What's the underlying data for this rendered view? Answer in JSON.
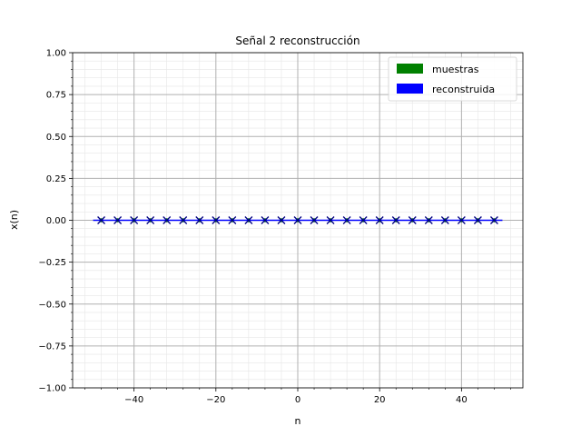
{
  "chart_data": {
    "type": "scatter",
    "title": "Señal 2 reconstrucción",
    "xlabel": "n",
    "ylabel": "x(n)",
    "xlim": [
      -55,
      55
    ],
    "ylim": [
      -1.0,
      1.0
    ],
    "x_major_ticks": [
      -40,
      -20,
      0,
      20,
      40
    ],
    "x_tick_labels": [
      "−40",
      "−20",
      "0",
      "20",
      "40"
    ],
    "y_major_ticks": [
      -1.0,
      -0.75,
      -0.5,
      -0.25,
      0.0,
      0.25,
      0.5,
      0.75,
      1.0
    ],
    "y_tick_labels": [
      "−1.00",
      "−0.75",
      "−0.50",
      "−0.25",
      "0.00",
      "0.25",
      "0.50",
      "0.75",
      "1.00"
    ],
    "grid": true,
    "minor_grid": true,
    "legend_position": "top-right",
    "series": [
      {
        "name": "muestras",
        "color": "#008000",
        "marker": "dot",
        "x": [
          -48,
          -44,
          -40,
          -36,
          -32,
          -28,
          -24,
          -20,
          -16,
          -12,
          -8,
          -4,
          0,
          4,
          8,
          12,
          16,
          20,
          24,
          28,
          32,
          36,
          40,
          44,
          48
        ],
        "y": [
          0,
          0,
          0,
          0,
          0,
          0,
          0,
          0,
          0,
          0,
          0,
          0,
          0,
          0,
          0,
          0,
          0,
          0,
          0,
          0,
          0,
          0,
          0,
          0,
          0
        ]
      },
      {
        "name": "reconstruida",
        "color": "#0000ff",
        "marker": "line",
        "x": [
          -50,
          50
        ],
        "y": [
          0,
          0
        ]
      },
      {
        "name": "",
        "color": "#000080",
        "marker": "x",
        "x": [
          -48,
          -44,
          -40,
          -36,
          -32,
          -28,
          -24,
          -20,
          -16,
          -12,
          -8,
          -4,
          0,
          4,
          8,
          12,
          16,
          20,
          24,
          28,
          32,
          36,
          40,
          44,
          48
        ],
        "y": [
          0,
          0,
          0,
          0,
          0,
          0,
          0,
          0,
          0,
          0,
          0,
          0,
          0,
          0,
          0,
          0,
          0,
          0,
          0,
          0,
          0,
          0,
          0,
          0,
          0
        ]
      }
    ]
  }
}
